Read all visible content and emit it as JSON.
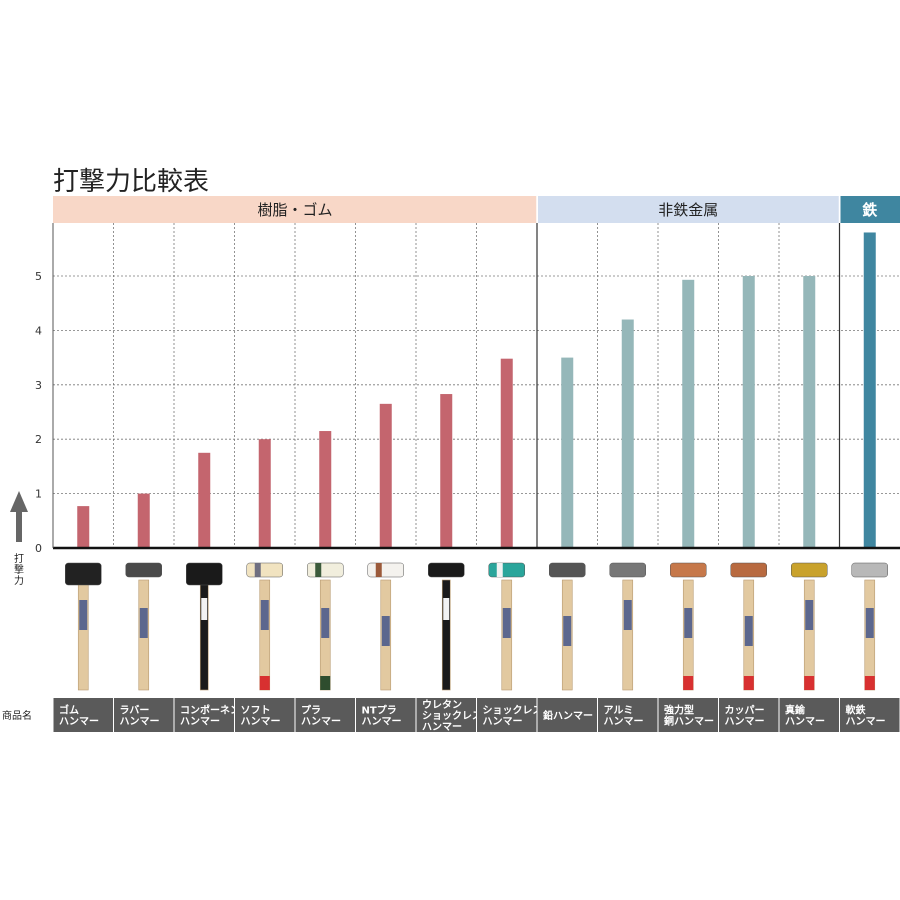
{
  "chart_data": {
    "type": "bar",
    "title": "打撃力比較表",
    "ylabel": "打撃力",
    "name_row_label": "商品名",
    "ylim": [
      0,
      5.9
    ],
    "yticks": [
      0,
      1,
      2,
      3,
      4,
      5
    ],
    "groups": [
      {
        "name": "樹脂・ゴム",
        "start": 0,
        "end": 7,
        "header_color": "#f8d7c7",
        "bar_color": "#c4656e"
      },
      {
        "name": "非鉄金属",
        "start": 8,
        "end": 12,
        "header_color": "#d3deef",
        "bar_color": "#95b7b9"
      },
      {
        "name": "鉄",
        "start": 13,
        "end": 13,
        "header_color": "#3f86a0",
        "bar_color": "#3f86a0"
      }
    ],
    "categories": [
      [
        "ゴム",
        "ハンマー"
      ],
      [
        "ラバー",
        "ハンマー"
      ],
      [
        "コンポーネント",
        "ハンマー"
      ],
      [
        "ソフト",
        "ハンマー"
      ],
      [
        "プラ",
        "ハンマー"
      ],
      [
        "NTプラ",
        "ハンマー"
      ],
      [
        "ウレタン",
        "ショックレス",
        "ハンマー"
      ],
      [
        "ショックレス",
        "ハンマー"
      ],
      [
        "鉛ハンマー"
      ],
      [
        "アルミ",
        "ハンマー"
      ],
      [
        "強力型",
        "銅ハンマー"
      ],
      [
        "カッパー",
        "ハンマー"
      ],
      [
        "真鍮",
        "ハンマー"
      ],
      [
        "軟鉄",
        "ハンマー"
      ]
    ],
    "values": [
      0.77,
      1.0,
      1.75,
      2.0,
      2.15,
      2.65,
      2.83,
      3.48,
      3.5,
      4.2,
      4.93,
      5.0,
      5.0,
      5.8
    ],
    "hammers": [
      {
        "head": "#222222",
        "handle": "#e2c9a0",
        "grip": "",
        "face": ""
      },
      {
        "head": "#4a4a4a",
        "handle": "#e2c9a0",
        "grip": "",
        "face": ""
      },
      {
        "head": "#1a1a1a",
        "handle": "#1a1a1a",
        "grip": "",
        "face": ""
      },
      {
        "head": "#f1e3c0",
        "handle": "#e2c9a0",
        "grip": "#d83030",
        "face": "#6f6f80"
      },
      {
        "head": "#f1eedd",
        "handle": "#e2c9a0",
        "grip": "#2e4d2e",
        "face": "#3b5a3b"
      },
      {
        "head": "#f4f2ee",
        "handle": "#e2c9a0",
        "grip": "",
        "face": "#9b5a3a"
      },
      {
        "head": "#1a1a1a",
        "handle": "#1a1a1a",
        "grip": "",
        "face": ""
      },
      {
        "head": "#2aa59b",
        "handle": "#e2c9a0",
        "grip": "",
        "face": "#f2f2f2"
      },
      {
        "head": "#555555",
        "handle": "#e2c9a0",
        "grip": "",
        "face": ""
      },
      {
        "head": "#777777",
        "handle": "#e2c9a0",
        "grip": "",
        "face": ""
      },
      {
        "head": "#c6784a",
        "handle": "#e2c9a0",
        "grip": "#d83030",
        "face": ""
      },
      {
        "head": "#b86a40",
        "handle": "#e2c9a0",
        "grip": "#d83030",
        "face": ""
      },
      {
        "head": "#c9a22c",
        "handle": "#e2c9a0",
        "grip": "#d83030",
        "face": ""
      },
      {
        "head": "#b8b8b8",
        "handle": "#e2c9a0",
        "grip": "#d83030",
        "face": ""
      }
    ],
    "grid": true,
    "legend": "none"
  },
  "colors": {
    "name_bar": "#5a5a5a",
    "axis": "#111111",
    "grid": "#777777",
    "arrow": "#666666"
  }
}
